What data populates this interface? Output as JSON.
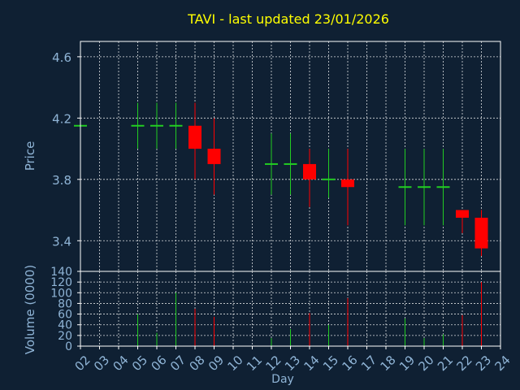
{
  "chart_data": {
    "type": "candlestick",
    "title": "TAVI - last updated 23/01/2026",
    "xlabel": "Day",
    "price_panel": {
      "ylabel": "Price",
      "ylim": [
        3.2,
        4.7
      ],
      "yticks": [
        "3.4",
        "3.8",
        "4.2",
        "4.6"
      ],
      "grid": true
    },
    "volume_panel": {
      "ylabel": "Volume (0000)",
      "ylim": [
        0,
        140
      ],
      "yticks": [
        "0",
        "20",
        "40",
        "60",
        "80",
        "100",
        "120",
        "140"
      ],
      "grid": true
    },
    "categories": [
      "02",
      "03",
      "04",
      "05",
      "06",
      "07",
      "08",
      "09",
      "10",
      "11",
      "12",
      "13",
      "14",
      "15",
      "16",
      "17",
      "18",
      "19",
      "20",
      "21",
      "22",
      "23",
      "24"
    ],
    "candles": [
      {
        "day": "02",
        "open": 4.15,
        "high": 4.15,
        "low": 4.15,
        "close": 4.15,
        "volume": 0
      },
      {
        "day": "05",
        "open": 4.15,
        "high": 4.3,
        "low": 4.0,
        "close": 4.15,
        "volume": 60
      },
      {
        "day": "06",
        "open": 4.15,
        "high": 4.3,
        "low": 4.0,
        "close": 4.15,
        "volume": 25
      },
      {
        "day": "07",
        "open": 4.15,
        "high": 4.3,
        "low": 4.0,
        "close": 4.15,
        "volume": 100
      },
      {
        "day": "08",
        "open": 4.15,
        "high": 4.3,
        "low": 3.8,
        "close": 4.0,
        "volume": 70
      },
      {
        "day": "09",
        "open": 4.0,
        "high": 4.2,
        "low": 3.7,
        "close": 3.9,
        "volume": 55
      },
      {
        "day": "12",
        "open": 3.9,
        "high": 4.1,
        "low": 3.7,
        "close": 3.9,
        "volume": 15
      },
      {
        "day": "13",
        "open": 3.9,
        "high": 4.1,
        "low": 3.7,
        "close": 3.9,
        "volume": 32
      },
      {
        "day": "14",
        "open": 3.9,
        "high": 4.0,
        "low": 3.62,
        "close": 3.8,
        "volume": 62
      },
      {
        "day": "15",
        "open": 3.8,
        "high": 4.0,
        "low": 3.68,
        "close": 3.8,
        "volume": 40
      },
      {
        "day": "16",
        "open": 3.8,
        "high": 4.0,
        "low": 3.5,
        "close": 3.75,
        "volume": 90
      },
      {
        "day": "19",
        "open": 3.75,
        "high": 4.0,
        "low": 3.5,
        "close": 3.75,
        "volume": 52
      },
      {
        "day": "20",
        "open": 3.75,
        "high": 4.0,
        "low": 3.5,
        "close": 3.75,
        "volume": 15
      },
      {
        "day": "21",
        "open": 3.75,
        "high": 4.0,
        "low": 3.5,
        "close": 3.75,
        "volume": 22
      },
      {
        "day": "22",
        "open": 3.6,
        "high": 3.6,
        "low": 3.45,
        "close": 3.55,
        "volume": 58
      },
      {
        "day": "23",
        "open": 3.55,
        "high": 3.6,
        "low": 3.3,
        "close": 3.35,
        "volume": 120
      }
    ],
    "colors": {
      "up": "#22cc22",
      "down": "#ff0000",
      "background": "#0f2033",
      "grid": "#ffffff",
      "title": "#ffff00",
      "axis_text": "#8fb4d6"
    }
  }
}
